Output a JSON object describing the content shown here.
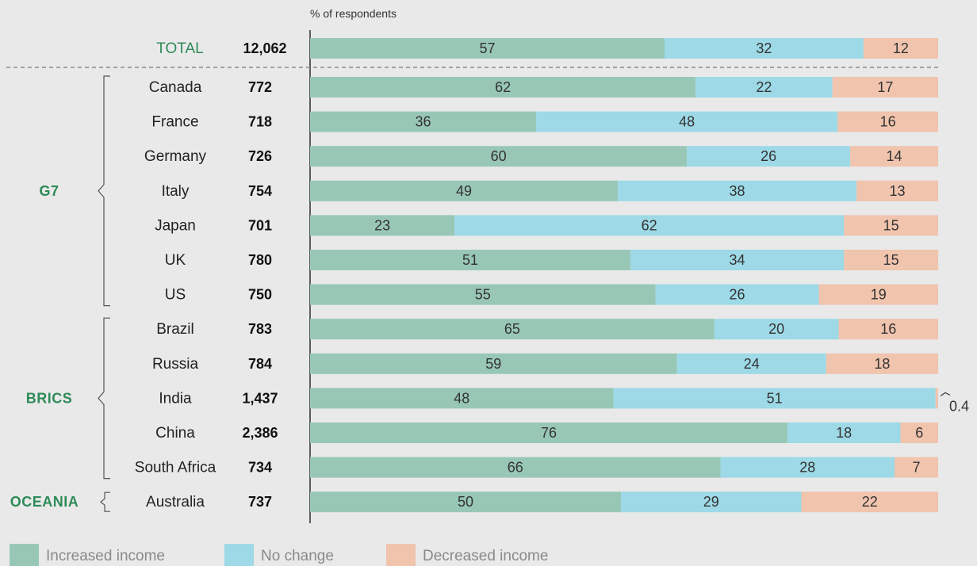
{
  "chart_data": {
    "type": "bar",
    "stacked": true,
    "orientation": "horizontal",
    "axis_caption": "% of respondents",
    "columns": {
      "n_header": ""
    },
    "total": {
      "label": "TOTAL",
      "n": "12,062",
      "values": [
        57,
        32,
        12
      ]
    },
    "series": [
      {
        "name": "Increased income",
        "color": "#98c7b6"
      },
      {
        "name": "No change",
        "color": "#9dd9e6"
      },
      {
        "name": "Decreased income",
        "color": "#f1c4ae"
      }
    ],
    "groups": [
      {
        "name": "G7",
        "rows": [
          {
            "country": "Canada",
            "n": "772",
            "values": [
              62,
              22,
              17
            ]
          },
          {
            "country": "France",
            "n": "718",
            "values": [
              36,
              48,
              16
            ]
          },
          {
            "country": "Germany",
            "n": "726",
            "values": [
              60,
              26,
              14
            ]
          },
          {
            "country": "Italy",
            "n": "754",
            "values": [
              49,
              38,
              13
            ]
          },
          {
            "country": "Japan",
            "n": "701",
            "values": [
              23,
              62,
              15
            ]
          },
          {
            "country": "UK",
            "n": "780",
            "values": [
              51,
              34,
              15
            ]
          },
          {
            "country": "US",
            "n": "750",
            "values": [
              55,
              26,
              19
            ]
          }
        ]
      },
      {
        "name": "BRICS",
        "rows": [
          {
            "country": "Brazil",
            "n": "783",
            "values": [
              65,
              20,
              16
            ]
          },
          {
            "country": "Russia",
            "n": "784",
            "values": [
              59,
              24,
              18
            ]
          },
          {
            "country": "India",
            "n": "1,437",
            "values": [
              48,
              51,
              0.4
            ]
          },
          {
            "country": "China",
            "n": "2,386",
            "values": [
              76,
              18,
              6
            ]
          },
          {
            "country": "South Africa",
            "n": "734",
            "values": [
              66,
              28,
              7
            ]
          }
        ]
      },
      {
        "name": "OCEANIA",
        "rows": [
          {
            "country": "Australia",
            "n": "737",
            "values": [
              50,
              29,
              22
            ]
          }
        ]
      }
    ]
  }
}
